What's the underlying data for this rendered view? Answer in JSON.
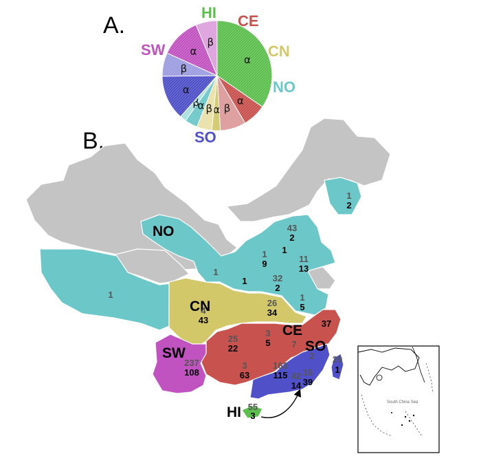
{
  "panels": {
    "a": "A.",
    "b": "B."
  },
  "colors": {
    "HI": "#5cbf4d",
    "CE": "#c8524e",
    "CN": "#d2c86a",
    "NO": "#6cc8c8",
    "SW": "#c153c1",
    "SO": "#5050c8",
    "gray": "#c4c4c4",
    "CE_b": "#dc9a9a",
    "CN_b": "#e8e0a8",
    "NO_b": "#a8e0e0",
    "SW_b": "#dca0dc",
    "SO_b": "#9c9ce0"
  },
  "chart_data": {
    "type": "pie",
    "slices": [
      {
        "region": "HI",
        "sub": "α",
        "value": 55
      },
      {
        "region": "CE",
        "sub": "α",
        "value": 11
      },
      {
        "region": "CE",
        "sub": "β",
        "value": 12
      },
      {
        "region": "CN",
        "sub": "α",
        "value": 4
      },
      {
        "region": "CN",
        "sub": "β",
        "value": 7
      },
      {
        "region": "NO",
        "sub": "α",
        "value": 6
      },
      {
        "region": "NO",
        "sub": "β",
        "value": 3
      },
      {
        "region": "SO",
        "sub": "α",
        "value": 21
      },
      {
        "region": "SO",
        "sub": "β",
        "value": 11
      },
      {
        "region": "SW",
        "sub": "α",
        "value": 19
      },
      {
        "region": "SW",
        "sub": "β",
        "value": 10
      }
    ],
    "legend": [
      "HI",
      "CE",
      "CN",
      "NO",
      "SO",
      "SW"
    ]
  },
  "map": {
    "region_labels": {
      "NO": "NO",
      "CN": "CN",
      "CE": "CE",
      "SO": "SO",
      "SW": "SW",
      "HI": "HI"
    },
    "counts": [
      {
        "a": "1",
        "b": "2"
      },
      {
        "a": "43",
        "b": "2"
      },
      {
        "a": "1",
        "b": "9"
      },
      {
        "a": "1",
        "b": ""
      },
      {
        "a": "11",
        "b": "13"
      },
      {
        "a": "1",
        "b": ""
      },
      {
        "a": "1",
        "b": ""
      },
      {
        "a": "32",
        "b": "2"
      },
      {
        "a": "1",
        "b": "5"
      },
      {
        "a": "1",
        "b": ""
      },
      {
        "a": "4",
        "b": "43"
      },
      {
        "a": "26",
        "b": "34"
      },
      {
        "a": "",
        "b": "37"
      },
      {
        "a": "25",
        "b": "22"
      },
      {
        "a": "3",
        "b": "5"
      },
      {
        "a": "7",
        "b": ""
      },
      {
        "a": "2",
        "b": ""
      },
      {
        "a": "237",
        "b": "108"
      },
      {
        "a": "3",
        "b": "63"
      },
      {
        "a": "163",
        "b": "115"
      },
      {
        "a": "42",
        "b": "14"
      },
      {
        "a": "15",
        "b": "39"
      },
      {
        "a": "29",
        "b": "1"
      },
      {
        "a": "55",
        "b": "3"
      }
    ]
  },
  "inset": {
    "label": "South China Sea"
  }
}
